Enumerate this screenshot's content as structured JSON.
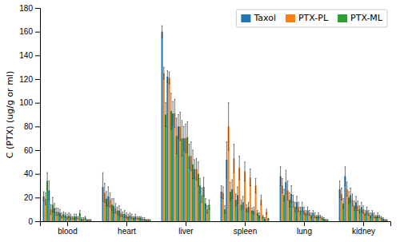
{
  "chart_data": {
    "type": "bar",
    "ylabel": "C (PTX) (ug/g or ml)",
    "categories": [
      null,
      null,
      null,
      null,
      "blood",
      null,
      null,
      null,
      null,
      null,
      null,
      null,
      null,
      "heart",
      null,
      null,
      null,
      null,
      null,
      null,
      null,
      null,
      "liver",
      null,
      null,
      null,
      null,
      null,
      null,
      null,
      null,
      "spleen",
      null,
      null,
      null,
      null,
      null,
      null,
      null,
      null,
      "lung",
      null,
      null,
      null,
      null,
      null,
      null,
      null,
      null,
      "kidney",
      null,
      null,
      null,
      null
    ],
    "series": [
      {
        "name": "Taxol",
        "values": [
          21,
          26,
          11,
          7,
          5,
          4,
          4,
          2,
          1,
          29,
          21,
          13,
          9,
          6,
          5,
          4,
          3,
          1,
          160,
          122,
          91,
          80,
          70,
          55,
          44,
          30,
          15,
          25,
          52,
          27,
          22,
          16,
          12,
          9,
          5,
          2,
          38,
          33,
          23,
          16,
          12,
          9,
          7,
          5,
          2,
          27,
          38,
          22,
          16,
          12,
          9,
          7,
          5,
          2
        ],
        "errors": [
          4,
          8,
          4,
          3,
          2,
          2,
          2,
          1,
          0.5,
          12,
          8,
          6,
          4,
          3,
          2,
          2,
          1,
          0.5,
          5,
          5,
          10,
          10,
          10,
          10,
          8,
          6,
          4,
          5,
          15,
          8,
          7,
          5,
          4,
          3,
          2,
          1,
          8,
          10,
          7,
          5,
          4,
          3,
          2,
          2,
          1,
          7,
          8,
          6,
          5,
          4,
          3,
          2,
          2,
          1
        ]
      },
      {
        "name": "PTX-PL",
        "values": [
          19,
          10,
          8,
          5,
          4,
          3,
          3,
          2,
          1,
          24,
          18,
          11,
          7,
          5,
          4,
          3,
          2,
          1,
          125,
          121,
          91,
          80,
          70,
          55,
          44,
          22,
          10,
          24,
          80,
          53,
          45,
          42,
          37,
          30,
          18,
          8,
          30,
          26,
          17,
          12,
          9,
          7,
          5,
          4,
          1,
          23,
          27,
          18,
          13,
          10,
          7,
          5,
          4,
          1
        ],
        "errors": [
          5,
          4,
          3,
          2,
          2,
          1,
          1,
          1,
          0.5,
          8,
          6,
          4,
          3,
          2,
          2,
          1,
          1,
          0.5,
          5,
          5,
          12,
          12,
          12,
          12,
          9,
          6,
          3,
          5,
          20,
          12,
          10,
          8,
          7,
          6,
          4,
          2,
          6,
          8,
          5,
          4,
          3,
          2,
          2,
          1,
          0.5,
          5,
          6,
          5,
          4,
          3,
          2,
          2,
          1,
          0.5
        ]
      },
      {
        "name": "PTX-ML",
        "values": [
          34,
          14,
          8,
          6,
          5,
          4,
          7,
          3,
          1,
          19,
          14,
          9,
          6,
          4,
          3,
          3,
          2,
          1,
          90,
          93,
          72,
          70,
          71,
          48,
          40,
          29,
          14,
          10,
          25,
          18,
          14,
          11,
          9,
          7,
          4,
          2,
          22,
          18,
          12,
          9,
          7,
          5,
          4,
          3,
          1,
          15,
          20,
          13,
          10,
          7,
          5,
          4,
          3,
          1
        ],
        "errors": [
          7,
          6,
          3,
          2,
          2,
          2,
          2,
          1,
          0.5,
          6,
          5,
          3,
          2,
          2,
          1,
          1,
          1,
          0.5,
          10,
          15,
          15,
          15,
          13,
          12,
          10,
          8,
          4,
          3,
          8,
          5,
          4,
          3,
          2,
          2,
          1,
          0.5,
          5,
          6,
          4,
          3,
          2,
          2,
          1,
          1,
          0.5,
          4,
          5,
          4,
          3,
          2,
          2,
          1,
          1,
          0.5
        ]
      }
    ],
    "ylim": [
      0,
      180
    ],
    "yticks": [
      0,
      20,
      40,
      60,
      80,
      100,
      120,
      140,
      160,
      180
    ],
    "grid": false,
    "legend": "upper right"
  }
}
